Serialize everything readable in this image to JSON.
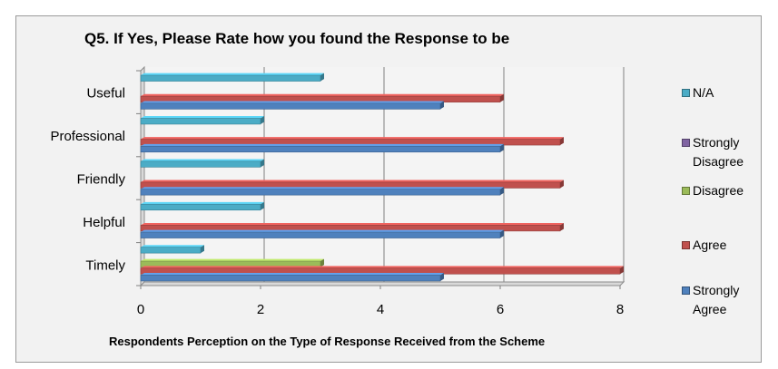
{
  "chart_data": {
    "type": "bar",
    "orientation": "horizontal",
    "title": "Q5. If Yes, Please Rate how you found the Response to be",
    "xlabel": "Respondents Perception on the Type of Response Received from the Scheme",
    "ylabel": "",
    "categories": [
      "Useful",
      "Professional",
      "Friendly",
      "Helpful",
      "Timely"
    ],
    "xlim": [
      0,
      8
    ],
    "xticks": [
      "0",
      "2",
      "4",
      "6",
      "8"
    ],
    "grid": true,
    "legend_position": "right",
    "series": [
      {
        "name": "N/A",
        "color": "#4bacc6",
        "values": [
          3,
          2,
          2,
          2,
          1
        ]
      },
      {
        "name": "Strongly Disagree",
        "color": "#8064a2",
        "values": [
          0,
          0,
          0,
          0,
          0
        ]
      },
      {
        "name": "Disagree",
        "color": "#9bbb59",
        "values": [
          0,
          0,
          0,
          0,
          3
        ]
      },
      {
        "name": "Agree",
        "color": "#c0504d",
        "values": [
          6,
          7,
          7,
          7,
          8
        ]
      },
      {
        "name": "Strongly Agree",
        "color": "#4f81bd",
        "values": [
          5,
          6,
          6,
          6,
          5
        ]
      }
    ]
  }
}
